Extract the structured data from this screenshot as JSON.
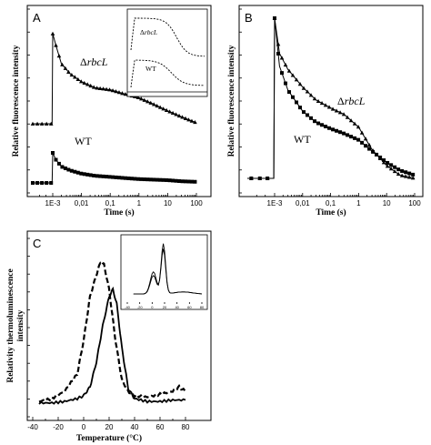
{
  "panels": [
    {
      "id": "A",
      "letter": "A",
      "ylabel": "Relative fluorescence intensity",
      "xlabel": "Time (s)",
      "xticks": [
        "1E-3",
        "0,01",
        "0,1",
        "1",
        "10",
        "100"
      ],
      "series_labels": {
        "rbcl_delta": "Δ",
        "rbcl_name": "rbcL",
        "wt": "WT"
      },
      "inset_labels": {
        "rbcl_delta": "Δ",
        "rbcl_name": "rbcL",
        "wt": "WT"
      }
    },
    {
      "id": "B",
      "letter": "B",
      "ylabel": "Relative fluorescence intensity",
      "xlabel": "Time (s)",
      "xticks": [
        "1E-3",
        "0,01",
        "0,1",
        "1",
        "10",
        "100"
      ],
      "series_labels": {
        "rbcl_delta": "Δ",
        "rbcl_name": "rbcL",
        "wt": "WT"
      }
    },
    {
      "id": "C",
      "letter": "C",
      "ylabel_line1": "Relativity thermoluminescence",
      "ylabel_line2": "intensity",
      "xlabel": "Temperature (°C)",
      "xticks": [
        "-40",
        "-20",
        "0",
        "20",
        "40",
        "60",
        "80"
      ],
      "inset_xticks": [
        "-40",
        "-20",
        "0",
        "20",
        "40",
        "60",
        "80"
      ]
    }
  ],
  "chart_data": [
    {
      "panel": "A",
      "type": "line",
      "x_scale": "log",
      "x_unit": "s",
      "series": [
        {
          "name": "ΔrbcL",
          "marker": "triangle",
          "x": [
            3e-05,
            0.0009,
            0.001,
            0.0013,
            0.002,
            0.004,
            0.01,
            0.03,
            0.1,
            0.3,
            1,
            3,
            10,
            30,
            100
          ],
          "y": [
            0.0,
            0.0,
            0.9,
            0.78,
            0.6,
            0.5,
            0.42,
            0.36,
            0.34,
            0.3,
            0.26,
            0.2,
            0.13,
            0.07,
            0.01
          ]
        },
        {
          "name": "WT",
          "marker": "square",
          "x": [
            3e-05,
            0.0009,
            0.001,
            0.0013,
            0.002,
            0.004,
            0.01,
            0.03,
            0.1,
            0.3,
            1,
            3,
            10,
            30,
            100
          ],
          "y": [
            0.0,
            0.0,
            0.55,
            0.42,
            0.3,
            0.23,
            0.17,
            0.13,
            0.11,
            0.09,
            0.07,
            0.06,
            0.05,
            0.03,
            0.02
          ]
        }
      ]
    },
    {
      "panel": "B",
      "type": "line",
      "x_scale": "log",
      "x_unit": "s",
      "series": [
        {
          "name": "ΔrbcL",
          "marker": "triangle",
          "x": [
            3e-05,
            0.0009,
            0.001,
            0.0015,
            0.003,
            0.01,
            0.03,
            0.1,
            0.3,
            1,
            3,
            10,
            30,
            100
          ],
          "y": [
            0.0,
            0.0,
            1.0,
            0.78,
            0.68,
            0.57,
            0.49,
            0.44,
            0.4,
            0.32,
            0.18,
            0.08,
            0.02,
            0.0
          ]
        },
        {
          "name": "WT",
          "marker": "square",
          "x": [
            3e-05,
            0.0009,
            0.001,
            0.0015,
            0.003,
            0.01,
            0.03,
            0.1,
            0.3,
            1,
            3,
            10,
            30,
            100
          ],
          "y": [
            0.0,
            0.0,
            1.0,
            0.7,
            0.55,
            0.42,
            0.35,
            0.31,
            0.28,
            0.24,
            0.17,
            0.1,
            0.05,
            0.02
          ]
        }
      ]
    },
    {
      "panel": "C",
      "type": "line",
      "x_unit": "°C",
      "xlim": [
        -40,
        80
      ],
      "series": [
        {
          "name": "dashed",
          "style": "dashed",
          "x": [
            -35,
            -25,
            -15,
            -5,
            0,
            5,
            10,
            13,
            16,
            20,
            25,
            30,
            35,
            40,
            50,
            60,
            70,
            75,
            80
          ],
          "y": [
            0.03,
            0.05,
            0.1,
            0.22,
            0.45,
            0.75,
            0.9,
            0.98,
            0.97,
            0.8,
            0.45,
            0.18,
            0.1,
            0.07,
            0.06,
            0.08,
            0.1,
            0.13,
            0.1
          ]
        },
        {
          "name": "solid",
          "style": "solid",
          "x": [
            -35,
            -25,
            -15,
            -5,
            0,
            5,
            10,
            15,
            20,
            23,
            26,
            30,
            35,
            40,
            50,
            60,
            70,
            80
          ],
          "y": [
            0.02,
            0.02,
            0.03,
            0.05,
            0.07,
            0.13,
            0.3,
            0.55,
            0.75,
            0.8,
            0.7,
            0.4,
            0.12,
            0.05,
            0.03,
            0.03,
            0.04,
            0.04
          ]
        }
      ]
    }
  ]
}
